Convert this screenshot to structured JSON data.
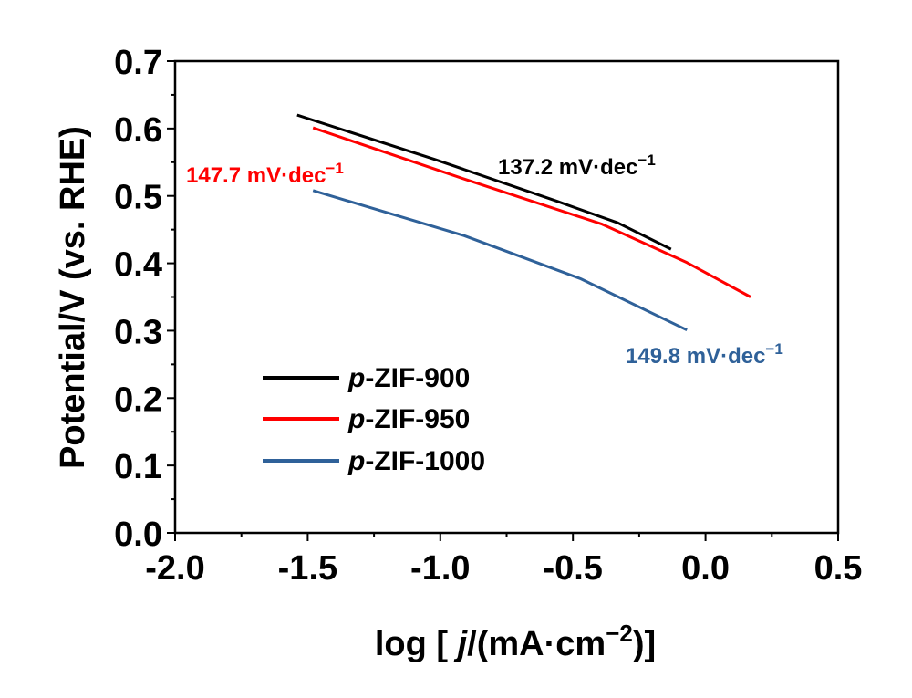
{
  "chart_data": {
    "type": "line",
    "xlabel_parts": {
      "pre": "log [ ",
      "italic": "j",
      "post": "/(mA·cm",
      "sup": "−2",
      "end": ")]"
    },
    "ylabel": "Potential/V (vs. RHE)",
    "xlim": [
      -2.0,
      0.5
    ],
    "ylim": [
      0.0,
      0.7
    ],
    "xticks": [
      "-2.0",
      "-1.5",
      "-1.0",
      "-0.5",
      "0.0",
      "0.5"
    ],
    "yticks": [
      "0.0",
      "0.1",
      "0.2",
      "0.3",
      "0.4",
      "0.5",
      "0.6",
      "0.7"
    ],
    "legend_placement": "lower-left",
    "series": [
      {
        "name": "p-ZIF-900",
        "prefix": "p",
        "suffix": "-ZIF-900",
        "color": "#000000",
        "x": [
          -1.54,
          -1.02,
          -0.56,
          -0.33,
          -0.13
        ],
        "y": [
          0.62,
          0.554,
          0.492,
          0.46,
          0.421
        ],
        "annotation": {
          "text": "137.2 mV·dec",
          "sup": "−1"
        }
      },
      {
        "name": "p-ZIF-950",
        "prefix": "p",
        "suffix": "-ZIF-950",
        "color": "#ff0000",
        "x": [
          -1.48,
          -0.91,
          -0.39,
          -0.07,
          0.17
        ],
        "y": [
          0.601,
          0.525,
          0.458,
          0.401,
          0.35
        ],
        "annotation": {
          "text": "147.7 mV·dec",
          "sup": "−1"
        }
      },
      {
        "name": "p-ZIF-1000",
        "prefix": "p",
        "suffix": "-ZIF-1000",
        "color": "#2f6199",
        "x": [
          -1.48,
          -0.91,
          -0.47,
          -0.07
        ],
        "y": [
          0.508,
          0.441,
          0.377,
          0.301
        ],
        "annotation": {
          "text": "149.8 mV·dec",
          "sup": "−1"
        }
      }
    ]
  }
}
